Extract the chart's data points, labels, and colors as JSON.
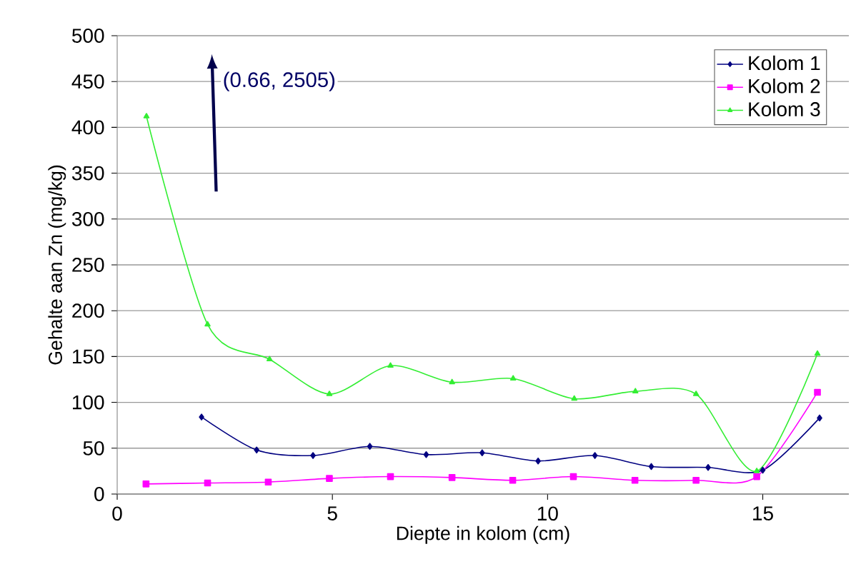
{
  "chart_data": {
    "type": "line",
    "xlabel": "Diepte in kolom (cm)",
    "ylabel": "Gehalte aan Zn (mg/kg)",
    "xlim": [
      0,
      17
    ],
    "ylim": [
      0,
      500
    ],
    "xticks": [
      0,
      5,
      10,
      15
    ],
    "yticks": [
      0,
      50,
      100,
      150,
      200,
      250,
      300,
      350,
      400,
      450,
      500
    ],
    "grid": "y",
    "legend": "top right",
    "annotations": [
      "(0.66, 2505)"
    ],
    "series": [
      {
        "name": "Kolom 1",
        "color": "#000080",
        "marker": "diamond",
        "x": [
          1.96,
          3.24,
          4.55,
          5.87,
          7.18,
          8.48,
          9.78,
          11.1,
          12.41,
          13.73,
          15.0,
          16.32
        ],
        "values": [
          84,
          48,
          42,
          52,
          43,
          45,
          36,
          42,
          30,
          29,
          26,
          83
        ]
      },
      {
        "name": "Kolom 2",
        "color": "#ff00ff",
        "marker": "square",
        "x": [
          0.67,
          2.1,
          3.51,
          4.93,
          6.35,
          7.78,
          9.19,
          10.6,
          12.03,
          13.45,
          14.86,
          16.27
        ],
        "values": [
          11,
          12,
          13,
          17,
          19,
          18,
          15,
          19,
          15,
          15,
          19,
          111
        ]
      },
      {
        "name": "Kolom 3",
        "color": "#33ee33",
        "marker": "triangle",
        "x": [
          0.68,
          2.1,
          3.54,
          4.93,
          6.35,
          7.78,
          9.2,
          10.62,
          12.04,
          13.45,
          14.86,
          16.27
        ],
        "values": [
          412,
          185,
          147,
          109,
          140,
          122,
          126,
          104,
          112,
          109,
          25,
          153
        ]
      }
    ]
  }
}
